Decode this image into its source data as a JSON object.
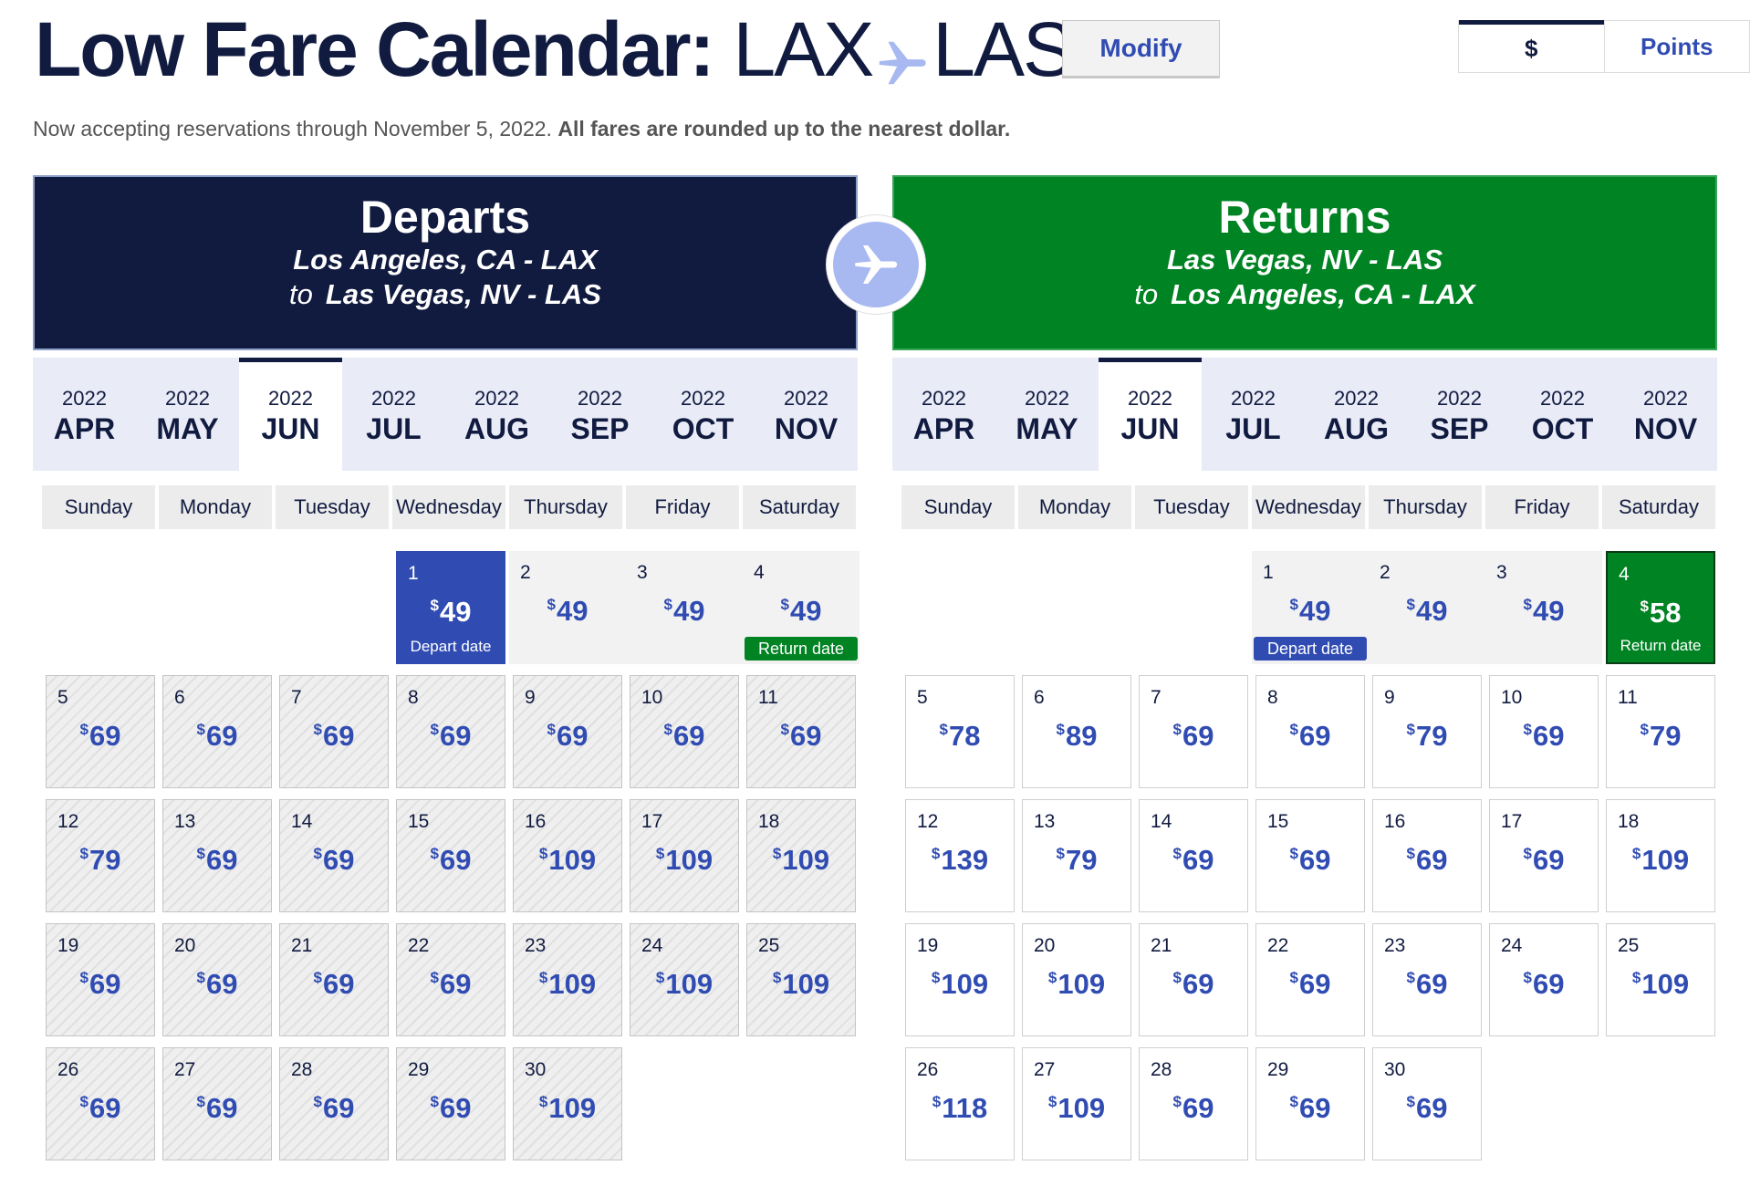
{
  "header": {
    "title_prefix": "Low Fare Calendar:",
    "origin": "LAX",
    "destination": "LAS",
    "modify_label": "Modify",
    "currency_options": [
      "$",
      "Points"
    ]
  },
  "notice": {
    "text": "Now accepting reservations through November 5, 2022.",
    "bold": "All fares are rounded up to the nearest dollar."
  },
  "colors": {
    "navy": "#111b40",
    "green": "#008323",
    "blue": "#304cb2"
  },
  "icons": {
    "title": "airplane-icon",
    "center": "airplane-icon"
  },
  "months": [
    {
      "year": "2022",
      "month": "APR"
    },
    {
      "year": "2022",
      "month": "MAY"
    },
    {
      "year": "2022",
      "month": "JUN"
    },
    {
      "year": "2022",
      "month": "JUL"
    },
    {
      "year": "2022",
      "month": "AUG"
    },
    {
      "year": "2022",
      "month": "SEP"
    },
    {
      "year": "2022",
      "month": "OCT"
    },
    {
      "year": "2022",
      "month": "NOV"
    }
  ],
  "selected_month": "JUN",
  "weekdays": [
    "Sunday",
    "Monday",
    "Tuesday",
    "Wednesday",
    "Thursday",
    "Friday",
    "Saturday"
  ],
  "currency_symbol": "$",
  "depart": {
    "title": "Departs",
    "from": "Los Angeles, CA - LAX",
    "to_word": "to",
    "to": "Las Vegas, NV - LAS",
    "first_weekday": 3,
    "selected_day": 1,
    "marker_day": 4,
    "selected_label": "Depart date",
    "marker_label": "Return date",
    "fares": [
      "49",
      "49",
      "49",
      "49",
      "69",
      "69",
      "69",
      "69",
      "69",
      "69",
      "69",
      "79",
      "69",
      "69",
      "69",
      "109",
      "109",
      "109",
      "69",
      "69",
      "69",
      "69",
      "109",
      "109",
      "109",
      "69",
      "69",
      "69",
      "69",
      "109"
    ]
  },
  "return": {
    "title": "Returns",
    "from": "Las Vegas, NV - LAS",
    "to_word": "to",
    "to": "Los Angeles, CA - LAX",
    "first_weekday": 3,
    "selected_day": 4,
    "marker_day": 1,
    "selected_label": "Return date",
    "marker_label": "Depart date",
    "fares": [
      "49",
      "49",
      "49",
      "58",
      "78",
      "89",
      "69",
      "69",
      "79",
      "69",
      "79",
      "139",
      "79",
      "69",
      "69",
      "69",
      "69",
      "109",
      "109",
      "109",
      "69",
      "69",
      "69",
      "69",
      "109",
      "118",
      "109",
      "69",
      "69",
      "69"
    ]
  }
}
